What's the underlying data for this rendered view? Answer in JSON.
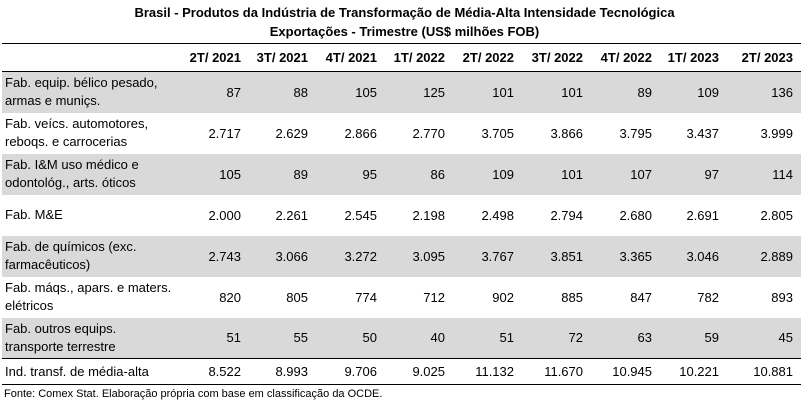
{
  "title": {
    "line1": "Brasil - Produtos da Indústria de Transformação de Média-Alta Intensidade Tecnológica",
    "line2": "Exportações - Trimestre (US$ milhões FOB)"
  },
  "columns": [
    "",
    "2T/ 2021",
    "3T/ 2021",
    "4T/ 2021",
    "1T/ 2022",
    "2T/ 2022",
    "3T/ 2022",
    "4T/ 2022",
    "1T/ 2023",
    "2T/ 2023"
  ],
  "rows": [
    {
      "label_l1": "Fab. equip. bélico pesado,",
      "label_l2": "armas e muniçs.",
      "values": [
        "87",
        "88",
        "105",
        "125",
        "101",
        "101",
        "89",
        "109",
        "136"
      ]
    },
    {
      "label_l1": "Fab. veícs. automotores,",
      "label_l2": "reboqs. e carrocerias",
      "values": [
        "2.717",
        "2.629",
        "2.866",
        "2.770",
        "3.705",
        "3.866",
        "3.795",
        "3.437",
        "3.999"
      ]
    },
    {
      "label_l1": "Fab. I&M uso médico e",
      "label_l2": "odontológ., arts. óticos",
      "values": [
        "105",
        "89",
        "95",
        "86",
        "109",
        "101",
        "107",
        "97",
        "114"
      ]
    },
    {
      "label_l1": "Fab. M&E",
      "label_l2": "",
      "values": [
        "2.000",
        "2.261",
        "2.545",
        "2.198",
        "2.498",
        "2.794",
        "2.680",
        "2.691",
        "2.805"
      ]
    },
    {
      "label_l1": "Fab. de químicos (exc.",
      "label_l2": "farmacêuticos)",
      "values": [
        "2.743",
        "3.066",
        "3.272",
        "3.095",
        "3.767",
        "3.851",
        "3.365",
        "3.046",
        "2.889"
      ]
    },
    {
      "label_l1": "Fab. máqs., apars. e maters.",
      "label_l2": "elétricos",
      "values": [
        "820",
        "805",
        "774",
        "712",
        "902",
        "885",
        "847",
        "782",
        "893"
      ]
    },
    {
      "label_l1": "Fab. outros equips.",
      "label_l2": "transporte terrestre",
      "values": [
        "51",
        "55",
        "50",
        "40",
        "51",
        "72",
        "63",
        "59",
        "45"
      ]
    }
  ],
  "total": {
    "label": "Ind. transf. de média-alta",
    "values": [
      "8.522",
      "8.993",
      "9.706",
      "9.025",
      "11.132",
      "11.670",
      "10.945",
      "10.221",
      "10.881"
    ]
  },
  "source": "Fonte: Comex Stat. Elaboração própria com base em classificação da OCDE.",
  "colors": {
    "shaded_row": "#d9d9d9",
    "rule": "#000000"
  }
}
